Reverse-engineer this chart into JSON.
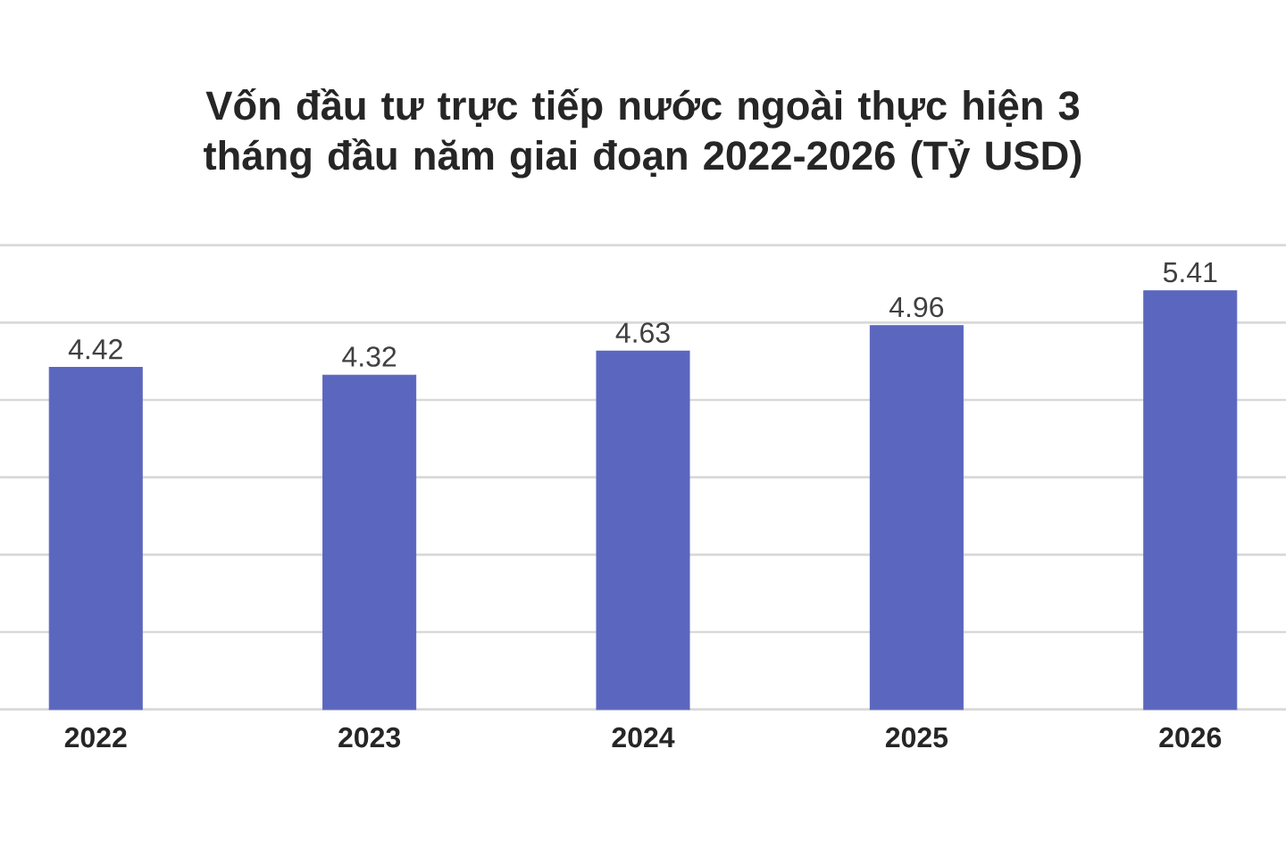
{
  "chart_data": {
    "type": "bar",
    "title": "Vốn đầu tư trực tiếp nước ngoài thực hiện 3 tháng đầu năm giai đoạn 2022-2026 (Tỷ USD)",
    "categories": [
      "2022",
      "2023",
      "2024",
      "2025",
      "2026"
    ],
    "values": [
      4.42,
      4.32,
      4.63,
      4.96,
      5.41
    ],
    "color": "#5b67be",
    "data_labels": true,
    "ylim": [
      0,
      6
    ],
    "yticks": [
      {
        "value": 0,
        "label": null
      },
      {
        "value": 1,
        "label": null
      },
      {
        "value": 2,
        "label": null
      },
      {
        "value": 3,
        "label": null
      },
      {
        "value": 4,
        "label": null
      },
      {
        "value": 5,
        "label": null
      },
      {
        "value": 6,
        "label": null
      }
    ],
    "grid": "y",
    "tick_labels": "x"
  }
}
